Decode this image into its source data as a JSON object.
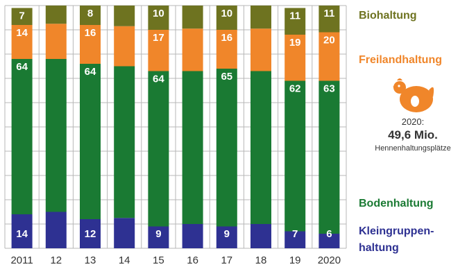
{
  "chart_data": {
    "type": "bar",
    "stacked": true,
    "categories": [
      "2011",
      "12",
      "13",
      "14",
      "15",
      "16",
      "17",
      "18",
      "19",
      "2020"
    ],
    "series": [
      {
        "name": "Kleingruppen-\nhaltung",
        "color": "#2e3192",
        "values": [
          14,
          15,
          12,
          12.5,
          9,
          10,
          9,
          10,
          7,
          6
        ],
        "labels": [
          "14",
          "",
          "12",
          "",
          "9",
          "",
          "9",
          "",
          "7",
          "6"
        ]
      },
      {
        "name": "Bodenhaltung",
        "color": "#1a7a33",
        "values": [
          64,
          63,
          64,
          62.5,
          64,
          63,
          65,
          63,
          62,
          63
        ],
        "labels": [
          "64",
          "",
          "64",
          "",
          "64",
          "",
          "65",
          "",
          "62",
          "63"
        ]
      },
      {
        "name": "Freilandhaltung",
        "color": "#f0862a",
        "values": [
          14,
          14.5,
          16,
          16.5,
          17,
          17.5,
          16,
          17.5,
          19,
          20
        ],
        "labels": [
          "14",
          "",
          "16",
          "",
          "17",
          "",
          "16",
          "",
          "19",
          "20"
        ]
      },
      {
        "name": "Biohaltung",
        "color": "#6e7320",
        "values": [
          7,
          7.5,
          8,
          8.5,
          10,
          9.5,
          10,
          9.5,
          11,
          11
        ],
        "labels": [
          "7",
          "",
          "8",
          "",
          "10",
          "",
          "10",
          "",
          "11",
          "11"
        ]
      }
    ],
    "ylim": [
      0,
      100
    ],
    "grid": true,
    "legend_placement": "right"
  },
  "legend": {
    "bio": "Biohaltung",
    "freiland": "Freilandhaltung",
    "boden": "Bodenhaltung",
    "kleingruppen_line1": "Kleingruppen-",
    "kleingruppen_line2": "haltung"
  },
  "info": {
    "year": "2020:",
    "value": "49,6 Mio.",
    "desc": "Hennenhaltungsplätze",
    "icon": "hen-icon"
  },
  "colors": {
    "bio": "#6e7320",
    "freiland": "#f0862a",
    "boden": "#1a7a33",
    "kleingruppen": "#2e3192",
    "grid": "#b7b7b7"
  }
}
